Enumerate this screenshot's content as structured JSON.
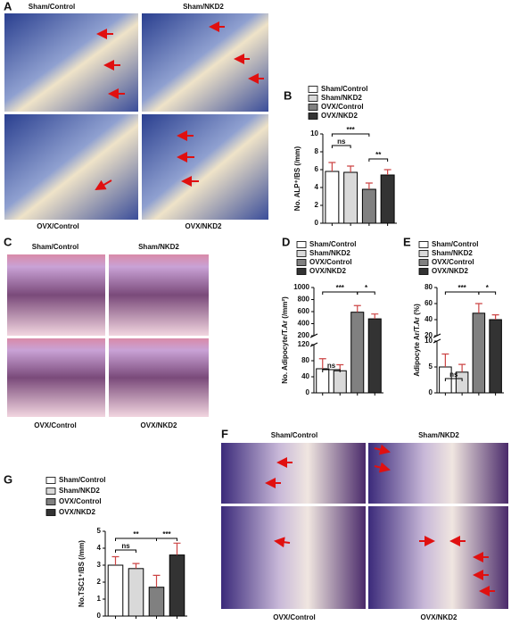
{
  "figure": {
    "panel_labels": [
      "A",
      "B",
      "C",
      "D",
      "E",
      "F",
      "G"
    ],
    "panel_A_images": [
      "Sham/Control",
      "Sham/NKD2",
      "OVX/Control",
      "OVX/NKD2"
    ],
    "panel_C_images": [
      "Sham/Control",
      "Sham/NKD2",
      "OVX/Control",
      "OVX/NKD2"
    ],
    "panel_F_images": [
      "Sham/Control",
      "Sham/NKD2",
      "OVX/Control",
      "OVX/NKD2"
    ]
  },
  "chart_data": [
    {
      "type": "bar",
      "y_label": "No. ALP⁺/BS (/mm)",
      "categories": [
        "Sham/Control",
        "Sham/NKD2",
        "OVX/Control",
        "OVX/NKD2"
      ],
      "values": [
        5.8,
        5.7,
        3.8,
        5.4
      ],
      "errors": [
        1.0,
        0.7,
        0.7,
        0.6
      ],
      "colors": [
        "#ffffff",
        "#d9d9d9",
        "#808080",
        "#333333"
      ],
      "ylim": [
        0,
        10
      ],
      "yticks": [
        0,
        2,
        4,
        6,
        8,
        10
      ],
      "annotations": [
        "ns",
        "***",
        "**"
      ]
    },
    {
      "type": "bar",
      "y_label": "No. Adipocyte/T.Ar (/mm²)",
      "categories": [
        "Sham/Control",
        "Sham/NKD2",
        "OVX/Control",
        "OVX/NKD2"
      ],
      "values": [
        60,
        55,
        590,
        480
      ],
      "errors": [
        25,
        15,
        110,
        80
      ],
      "colors": [
        "#ffffff",
        "#d9d9d9",
        "#808080",
        "#333333"
      ],
      "y_segments": [
        {
          "ylim": [
            0,
            120
          ],
          "yticks": [
            0,
            40,
            80,
            120
          ]
        },
        {
          "ylim": [
            200,
            1000
          ],
          "yticks": [
            200,
            400,
            600,
            800,
            1000
          ]
        }
      ],
      "annotations": [
        "ns",
        "***",
        "*"
      ]
    },
    {
      "type": "bar",
      "y_label": "Adipocyte Ar/T.Ar (%)",
      "categories": [
        "Sham/Control",
        "Sham/NKD2",
        "OVX/Control",
        "OVX/NKD2"
      ],
      "values": [
        5,
        4,
        48,
        40
      ],
      "errors": [
        2.5,
        1.5,
        12,
        6
      ],
      "colors": [
        "#ffffff",
        "#d9d9d9",
        "#808080",
        "#333333"
      ],
      "y_segments": [
        {
          "ylim": [
            0,
            10
          ],
          "yticks": [
            0,
            5,
            10
          ]
        },
        {
          "ylim": [
            20,
            80
          ],
          "yticks": [
            20,
            40,
            60,
            80
          ]
        }
      ],
      "annotations": [
        "ns",
        "***",
        "*"
      ]
    },
    {
      "type": "bar",
      "y_label": "No.TSC1⁺/BS (/mm)",
      "categories": [
        "Sham/Control",
        "Sham/NKD2",
        "OVX/Control",
        "OVX/NKD2"
      ],
      "values": [
        3.0,
        2.8,
        1.7,
        3.6
      ],
      "errors": [
        0.5,
        0.3,
        0.7,
        0.7
      ],
      "colors": [
        "#ffffff",
        "#d9d9d9",
        "#808080",
        "#333333"
      ],
      "ylim": [
        0,
        5
      ],
      "yticks": [
        0,
        1,
        2,
        3,
        4,
        5
      ],
      "annotations": [
        "ns",
        "**",
        "***"
      ]
    }
  ]
}
